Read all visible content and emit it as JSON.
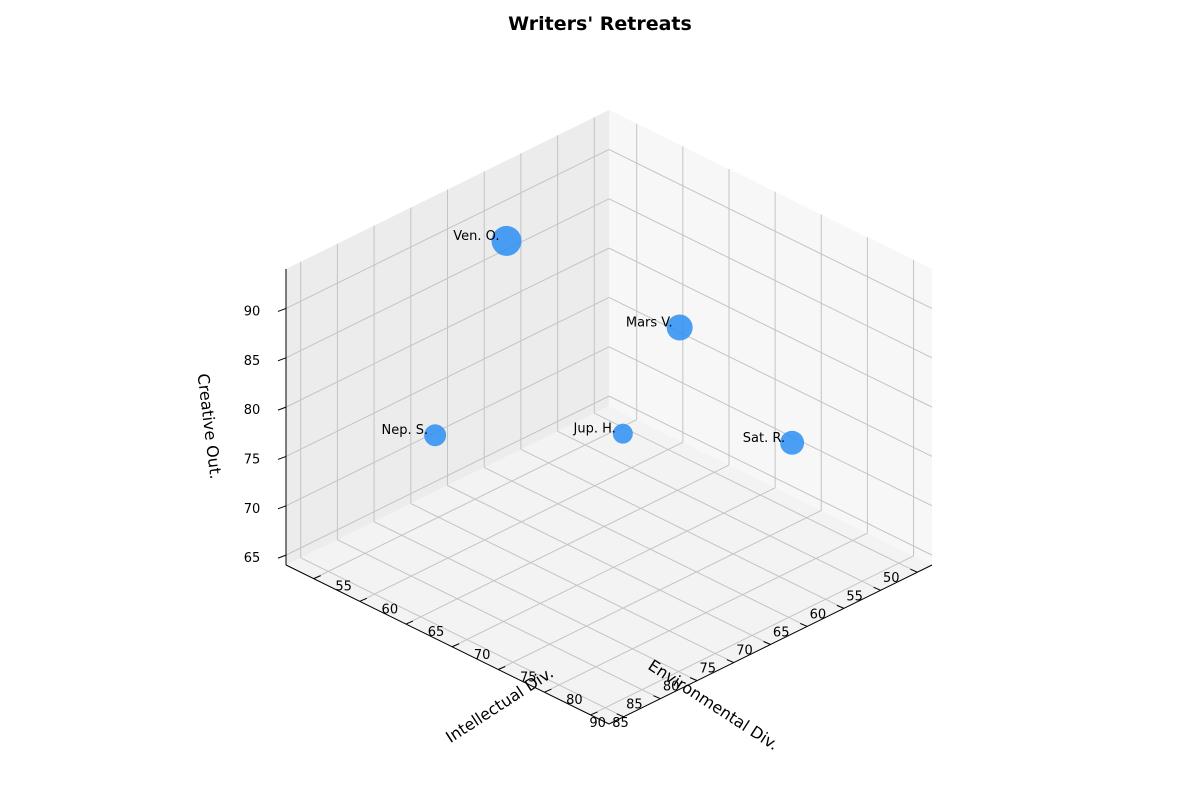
{
  "chart_data": {
    "type": "scatter",
    "projection": "3d",
    "title": "Writers' Retreats",
    "xlabel": "Intellectual Div.",
    "ylabel": "Environmental Div.",
    "zlabel": "Creative Out.",
    "xlim": [
      52,
      87
    ],
    "ylim": [
      48,
      92
    ],
    "zlim": [
      64,
      94
    ],
    "xticks": [
      55,
      60,
      65,
      70,
      75,
      80,
      85
    ],
    "yticks": [
      50,
      55,
      60,
      65,
      70,
      75,
      80,
      85,
      90
    ],
    "zticks": [
      65,
      70,
      75,
      80,
      85,
      90
    ],
    "grid": true,
    "marker_color": "#2b8ff5",
    "points": [
      {
        "label": "Ven. O.",
        "x": 57.6,
        "y": 69.0,
        "z": 91.0,
        "size": 30
      },
      {
        "label": "Mars V.",
        "x": 70.0,
        "y": 61.0,
        "z": 85.0,
        "size": 26
      },
      {
        "label": "Jup. H.",
        "x": 71.0,
        "y": 70.0,
        "z": 78.0,
        "size": 20
      },
      {
        "label": "Nep. S.",
        "x": 61.0,
        "y": 83.0,
        "z": 78.0,
        "size": 22
      },
      {
        "label": "Sat. R.",
        "x": 79.0,
        "y": 57.0,
        "z": 76.0,
        "size": 24
      }
    ]
  }
}
